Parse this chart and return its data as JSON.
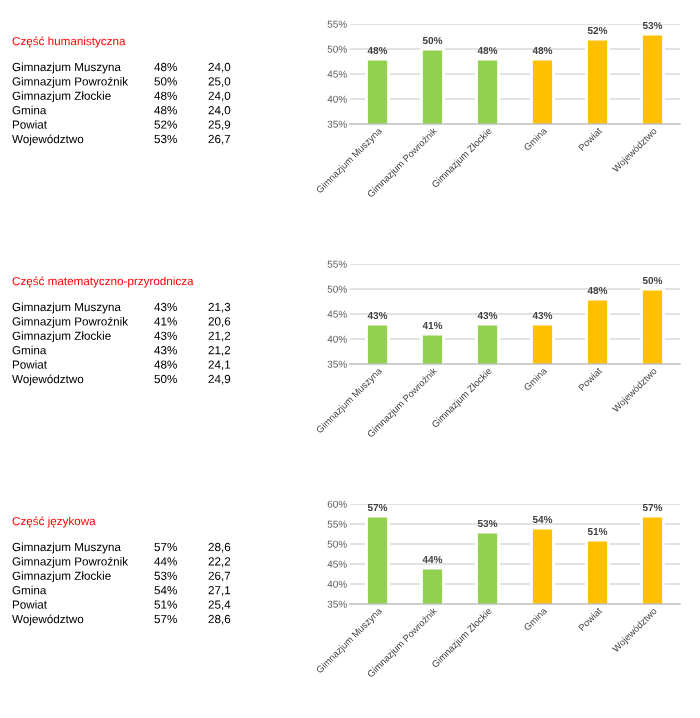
{
  "chart_data": [
    {
      "type": "other",
      "title": "Część humanistyczna",
      "annotations": [
        "Gimnazjum Muszyna",
        "48%",
        "24,0",
        "Gimnazjum Powroźnik",
        "50%",
        "25,0",
        "Gimnazjum Złockie",
        "48%",
        "24,0",
        "Gmina",
        "48%",
        "24,0",
        "Powiat",
        "52%",
        "25,9",
        "Województwo",
        "53%",
        "26,7"
      ]
    },
    {
      "type": "bar",
      "categories": [
        "Gimnazjum Muszyna",
        "Gimnazjum Powroźnik",
        "Gimnazjum Złockie",
        "Gmina",
        "Powiat",
        "Województwo"
      ],
      "values": [
        48,
        50,
        48,
        48,
        52,
        53
      ],
      "colors": [
        "#92d050",
        "#92d050",
        "#92d050",
        "#ffc000",
        "#ffc000",
        "#ffc000"
      ],
      "value_labels": [
        "48%",
        "50%",
        "48%",
        "48%",
        "52%",
        "53%"
      ],
      "ylim": [
        35,
        55
      ],
      "yticks": [
        {
          "value": 35,
          "label": "35%"
        },
        {
          "value": 40,
          "label": "40%"
        },
        {
          "value": 45,
          "label": "45%"
        },
        {
          "value": 50,
          "label": "50%"
        },
        {
          "value": 55,
          "label": "55%"
        }
      ],
      "grid": "y"
    },
    {
      "type": "other",
      "title": "Część matematyczno-przyrodnicza",
      "annotations": [
        "Gimnazjum Muszyna",
        "43%",
        "21,3",
        "Gimnazjum Powroźnik",
        "41%",
        "20,6",
        "Gimnazjum Złockie",
        "43%",
        "21,2",
        "Gmina",
        "43%",
        "21,2",
        "Powiat",
        "48%",
        "24,1",
        "Województwo",
        "50%",
        "24,9"
      ]
    },
    {
      "type": "bar",
      "categories": [
        "Gimnazjum Muszyna",
        "Gimnazjum Powroźnik",
        "Gimnazjum Złockie",
        "Gmina",
        "Powiat",
        "Województwo"
      ],
      "values": [
        43,
        41,
        43,
        43,
        48,
        50
      ],
      "colors": [
        "#92d050",
        "#92d050",
        "#92d050",
        "#ffc000",
        "#ffc000",
        "#ffc000"
      ],
      "value_labels": [
        "43%",
        "41%",
        "43%",
        "43%",
        "48%",
        "50%"
      ],
      "ylim": [
        35,
        55
      ],
      "yticks": [
        {
          "value": 35,
          "label": "35%"
        },
        {
          "value": 40,
          "label": "40%"
        },
        {
          "value": 45,
          "label": "45%"
        },
        {
          "value": 50,
          "label": "50%"
        },
        {
          "value": 55,
          "label": "55%"
        }
      ],
      "grid": "y"
    },
    {
      "type": "other",
      "title": "Część językowa",
      "annotations": [
        "Gimnazjum Muszyna",
        "57%",
        "28,6",
        "Gimnazjum Powroźnik",
        "44%",
        "22,2",
        "Gimnazjum Złockie",
        "53%",
        "26,7",
        "Gmina",
        "54%",
        "27,1",
        "Powiat",
        "51%",
        "25,4",
        "Województwo",
        "57%",
        "28,6"
      ]
    },
    {
      "type": "bar",
      "categories": [
        "Gimnazjum Muszyna",
        "Gimnazjum Powroźnik",
        "Gimnazjum Złockie",
        "Gmina",
        "Powiat",
        "Województwo"
      ],
      "values": [
        57,
        44,
        53,
        54,
        51,
        57
      ],
      "colors": [
        "#92d050",
        "#92d050",
        "#92d050",
        "#ffc000",
        "#ffc000",
        "#ffc000"
      ],
      "value_labels": [
        "57%",
        "44%",
        "53%",
        "54%",
        "51%",
        "57%"
      ],
      "ylim": [
        35,
        60
      ],
      "yticks": [
        {
          "value": 35,
          "label": "35%"
        },
        {
          "value": 40,
          "label": "40%"
        },
        {
          "value": 45,
          "label": "45%"
        },
        {
          "value": 50,
          "label": "50%"
        },
        {
          "value": 55,
          "label": "55%"
        },
        {
          "value": 60,
          "label": "60%"
        }
      ],
      "grid": "y"
    }
  ]
}
